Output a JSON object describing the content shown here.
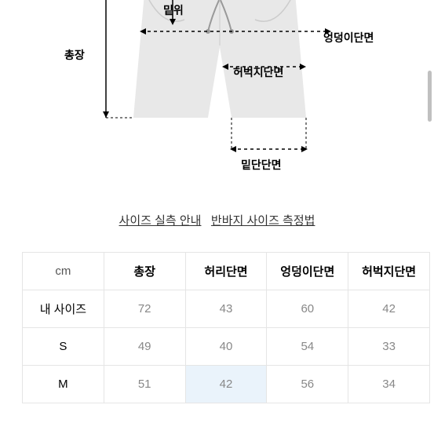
{
  "diagram": {
    "labels": {
      "total_length": "총장",
      "rise": "밑위",
      "hip": "엉덩이단면",
      "thigh": "허벅지단면",
      "hem": "밑단단면"
    },
    "shorts_color": "#e8e8e8",
    "line_color": "#000000"
  },
  "links": {
    "guide": "사이즈 실측 안내",
    "method": "반바지 사이즈 측정법"
  },
  "table": {
    "unit": "cm",
    "headers": [
      "총장",
      "허리단면",
      "엉덩이단면",
      "허벅지단면"
    ],
    "rows": [
      {
        "label": "내 사이즈",
        "values": [
          "72",
          "43",
          "60",
          "42"
        ],
        "highlights": []
      },
      {
        "label": "S",
        "values": [
          "49",
          "40",
          "54",
          "33"
        ],
        "highlights": []
      },
      {
        "label": "M",
        "values": [
          "51",
          "42",
          "56",
          "34"
        ],
        "highlights": [
          1
        ]
      }
    ],
    "header_bg": "#ffffff",
    "cell_text_color": "#888888",
    "highlight_bg": "#eaf3fb",
    "border_color": "#e5e5e5"
  }
}
